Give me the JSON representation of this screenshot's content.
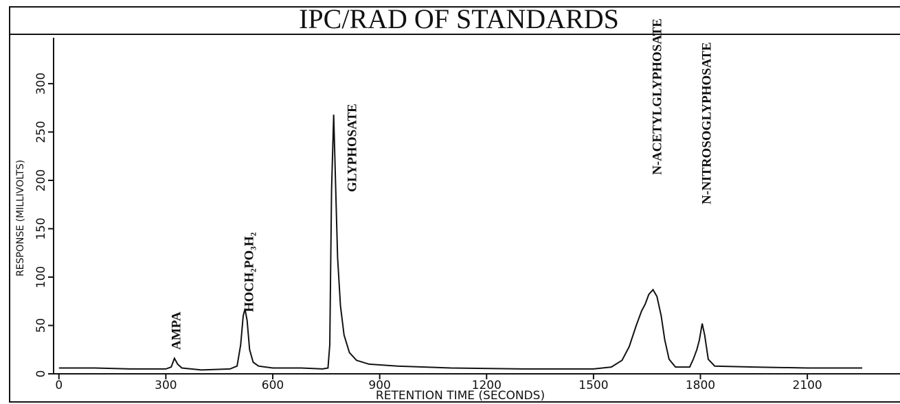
{
  "chart_data": {
    "type": "line",
    "title": "IPC/RAD OF STANDARDS",
    "x_label": "RETENTION TIME (SECONDS)",
    "y_label": "RESPONSE (MILLIVOLTS)",
    "annotations": [
      "AMPA",
      "HOCH₂PO₃H₂",
      "GLYPHOSATE",
      "N-ACETYLGLYPHOSATE",
      "N-NITROSOGLYPHOSATE"
    ],
    "xlim": [
      -15,
      2360
    ],
    "ylim": [
      0,
      345
    ],
    "xticks": [
      0,
      300,
      600,
      900,
      1200,
      1500,
      1800,
      2100
    ],
    "yticks": [
      0,
      50,
      100,
      150,
      200,
      250,
      300
    ],
    "series": [
      {
        "color": "#111111",
        "x": [
          0,
          100,
          200,
          300,
          315,
          324,
          333,
          345,
          400,
          480,
          500,
          510,
          517,
          522,
          528,
          535,
          545,
          560,
          600,
          680,
          740,
          755,
          760,
          765,
          771,
          776,
          782,
          790,
          800,
          815,
          835,
          870,
          950,
          1100,
          1300,
          1500,
          1550,
          1580,
          1600,
          1620,
          1635,
          1645,
          1655,
          1667,
          1678,
          1690,
          1700,
          1712,
          1730,
          1770,
          1780,
          1790,
          1797,
          1805,
          1812,
          1822,
          1840,
          1950,
          2100,
          2254
        ],
        "values": [
          6,
          6,
          5,
          5,
          7,
          16,
          10,
          6,
          4,
          5,
          8,
          30,
          60,
          67,
          55,
          25,
          12,
          8,
          6,
          6,
          5,
          6,
          30,
          190,
          268,
          200,
          120,
          70,
          40,
          22,
          14,
          10,
          8,
          6,
          5,
          5,
          7,
          14,
          28,
          50,
          65,
          72,
          82,
          87,
          80,
          60,
          35,
          15,
          7,
          7,
          15,
          25,
          35,
          52,
          40,
          15,
          8,
          7,
          6,
          6
        ]
      }
    ]
  }
}
